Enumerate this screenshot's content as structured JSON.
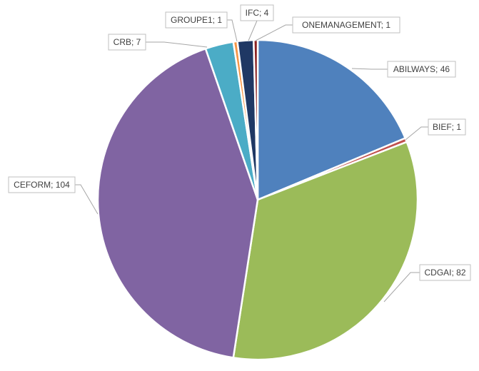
{
  "chart_data": {
    "type": "pie",
    "title": "",
    "start_angle_deg": 0,
    "direction": "clockwise",
    "legend": "none",
    "slices": [
      {
        "label": "ABILWAYS; 46",
        "name": "ABILWAYS",
        "value": 46,
        "color": "#4f81bd"
      },
      {
        "label": "BIEF; 1",
        "name": "BIEF",
        "value": 1,
        "color": "#c0504d"
      },
      {
        "label": "CDGAI; 82",
        "name": "CDGAI",
        "value": 82,
        "color": "#9bbb59"
      },
      {
        "label": "CEFORM; 104",
        "name": "CEFORM",
        "value": 104,
        "color": "#8064a2"
      },
      {
        "label": "CRB; 7",
        "name": "CRB",
        "value": 7,
        "color": "#4bacc6"
      },
      {
        "label": "GROUPE1; 1",
        "name": "GROUPE1",
        "value": 1,
        "color": "#f79646"
      },
      {
        "label": "IFC; 4",
        "name": "IFC",
        "value": 4,
        "color": "#1f3864"
      },
      {
        "label": "ONEMANAGEMENT; 1",
        "name": "ONEMANAGEMENT",
        "value": 1,
        "color": "#8b2323"
      }
    ]
  }
}
